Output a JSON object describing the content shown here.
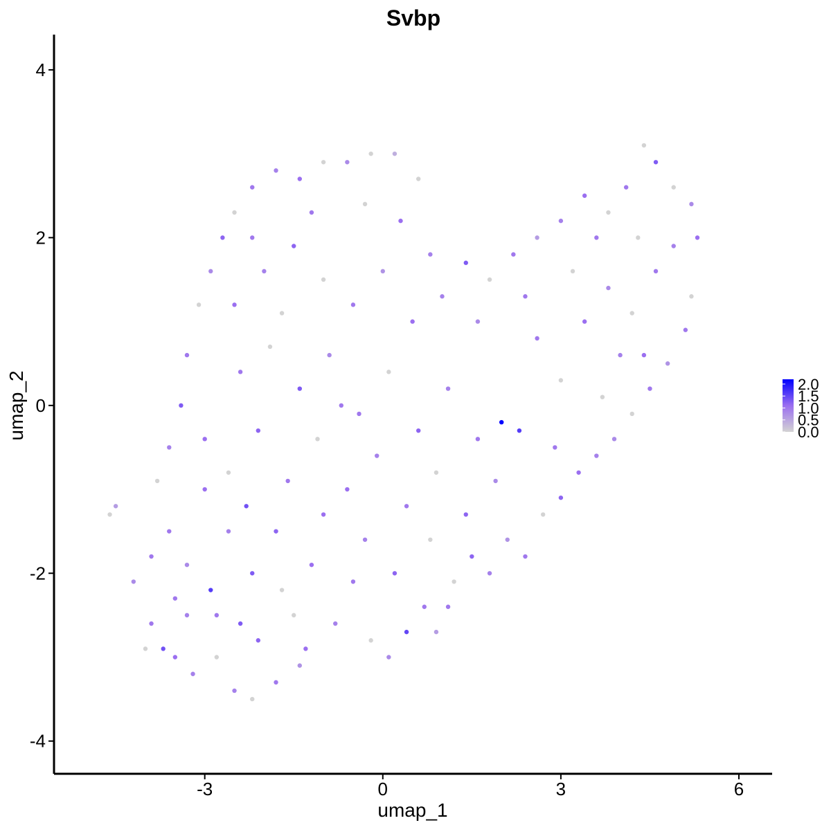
{
  "chart_data": {
    "type": "scatter",
    "title": "Svbp",
    "x_label": "umap_1",
    "y_label": "umap_2",
    "xlim": [
      -5.54,
      6.56
    ],
    "ylim": [
      -4.39,
      4.42
    ],
    "xticks": [
      -3,
      0,
      3,
      6
    ],
    "yticks": [
      -4,
      -2,
      0,
      2,
      4
    ],
    "colorbar": {
      "lim": [
        0,
        2.2
      ],
      "colors": [
        "#d3d3d3",
        "#9b6ff0",
        "#0000ff"
      ],
      "ticks": [
        {
          "value": 0,
          "label": "0.0"
        },
        {
          "value": 0.5,
          "label": "0.5"
        },
        {
          "value": 1,
          "label": "1.0"
        },
        {
          "value": 1.5,
          "label": "1.5"
        },
        {
          "value": 2,
          "label": "2.0"
        }
      ]
    },
    "x": [
      -4.6,
      -4.5,
      -4.2,
      -3.9,
      -3.7,
      -3.5,
      -3.2,
      -2.9,
      -2.8,
      -2.5,
      -2.2,
      -2.1,
      -1.8,
      -1.4,
      -3.6,
      -3.3,
      -3.0,
      -2.6,
      -2.2,
      -1.8,
      -1.5,
      -1.2,
      -0.8,
      -0.5,
      -0.2,
      0.1,
      0.4,
      0.7,
      0.9,
      1.2,
      1.5,
      1.8,
      2.1,
      2.4,
      2.7,
      3.0,
      3.3,
      3.6,
      3.9,
      4.2,
      4.5,
      4.8,
      5.1,
      5.2,
      5.3,
      5.2,
      4.9,
      4.6,
      4.4,
      4.1,
      3.8,
      3.4,
      3.0,
      2.6,
      2.2,
      1.8,
      1.4,
      1.0,
      0.6,
      0.2,
      -0.2,
      -0.6,
      -1.0,
      -1.4,
      -1.8,
      -2.2,
      -2.5,
      -2.7,
      -2.9,
      -3.1,
      -3.3,
      -3.4,
      -3.6,
      -3.8,
      -2.5,
      -2.0,
      -1.5,
      -1.0,
      -0.5,
      0.0,
      0.5,
      -2.4,
      -1.9,
      -1.4,
      -0.9,
      -0.4,
      0.1,
      0.6,
      1.1,
      1.6,
      2.0,
      2.3,
      2.6,
      3.0,
      3.4,
      3.8,
      4.2,
      4.6,
      4.0,
      3.2,
      2.4,
      1.6,
      -3.0,
      -2.6,
      -2.1,
      -1.6,
      -1.1,
      -0.6,
      -0.1,
      0.4,
      0.9,
      1.4,
      1.9,
      -2.8,
      -2.3,
      -1.7,
      -1.0,
      -0.3,
      0.2,
      0.8,
      1.1,
      -3.3,
      -3.9,
      -4.0,
      2.9,
      3.7,
      4.4,
      4.9,
      4.3,
      3.6,
      -1.2,
      -0.3,
      0.3,
      0.8,
      -2.2,
      -1.7,
      -0.7,
      -1.3,
      -2.4,
      -3.5
    ],
    "y": [
      -1.3,
      -1.2,
      -2.1,
      -2.6,
      -2.9,
      -3.0,
      -3.2,
      -2.2,
      -3.0,
      -3.4,
      -3.5,
      -2.8,
      -3.3,
      -3.1,
      -1.5,
      -1.9,
      -1.0,
      -1.5,
      -2.0,
      -1.5,
      -2.5,
      -1.9,
      -2.6,
      -2.1,
      -2.8,
      -3.0,
      -2.7,
      -2.4,
      -2.7,
      -2.1,
      -1.8,
      -2.0,
      -1.6,
      -1.8,
      -1.3,
      -1.1,
      -0.8,
      -0.6,
      -0.4,
      -0.1,
      0.2,
      0.5,
      0.9,
      1.3,
      2.0,
      2.4,
      2.6,
      2.9,
      3.1,
      2.6,
      2.3,
      2.5,
      2.2,
      2.0,
      1.8,
      1.5,
      1.7,
      1.3,
      2.7,
      3.0,
      3.0,
      2.9,
      2.9,
      2.7,
      2.8,
      2.6,
      2.3,
      2.0,
      1.6,
      1.2,
      0.6,
      0.0,
      -0.5,
      -0.9,
      1.2,
      1.6,
      1.9,
      1.5,
      1.2,
      1.6,
      1.0,
      0.4,
      0.7,
      0.2,
      0.6,
      -0.1,
      0.4,
      -0.3,
      0.2,
      -0.4,
      -0.2,
      -0.3,
      0.8,
      0.3,
      1.0,
      1.4,
      1.1,
      1.6,
      0.6,
      1.6,
      1.3,
      1.0,
      -0.4,
      -0.8,
      -0.3,
      -0.9,
      -0.4,
      -1.0,
      -0.6,
      -1.2,
      -0.8,
      -1.3,
      -0.9,
      -2.5,
      -1.2,
      -2.2,
      -1.3,
      -1.6,
      -2.0,
      -1.6,
      -2.4,
      -2.5,
      -1.8,
      -2.9,
      -0.5,
      0.1,
      0.6,
      1.9,
      2.0,
      2.0,
      2.3,
      2.4,
      2.2,
      1.8,
      2.0,
      1.1,
      0.0,
      -2.9,
      -2.6,
      -2.3
    ],
    "values": [
      0.0,
      0.6,
      0.8,
      1.0,
      1.4,
      1.1,
      0.9,
      1.6,
      0.0,
      0.9,
      0.0,
      1.2,
      1.0,
      0.7,
      1.0,
      0.8,
      1.1,
      0.9,
      1.3,
      1.2,
      0.0,
      1.1,
      0.9,
      1.0,
      0.0,
      0.8,
      1.5,
      1.0,
      0.6,
      0.0,
      1.2,
      0.9,
      0.7,
      1.0,
      0.0,
      1.2,
      1.1,
      0.9,
      0.8,
      0.0,
      1.0,
      0.7,
      1.0,
      0.0,
      1.1,
      0.8,
      0.0,
      1.3,
      0.0,
      1.0,
      0.0,
      1.1,
      0.9,
      0.6,
      1.0,
      0.0,
      1.3,
      0.9,
      0.0,
      0.4,
      0.0,
      0.8,
      0.0,
      1.1,
      0.9,
      1.0,
      0.0,
      1.2,
      0.8,
      0.0,
      1.0,
      1.3,
      0.9,
      0.0,
      1.1,
      0.9,
      1.2,
      0.0,
      1.0,
      0.7,
      1.1,
      1.0,
      0.0,
      1.3,
      0.8,
      1.0,
      0.0,
      1.2,
      0.9,
      1.0,
      2.2,
      1.6,
      1.0,
      0.0,
      1.1,
      0.8,
      0.0,
      1.0,
      0.9,
      0.0,
      1.0,
      0.8,
      1.1,
      0.0,
      1.2,
      1.0,
      0.0,
      1.1,
      0.9,
      1.0,
      0.0,
      1.2,
      0.8,
      1.0,
      1.4,
      0.0,
      1.1,
      0.9,
      1.2,
      0.0,
      1.0,
      0.9,
      1.0,
      0.0,
      1.0,
      0.0,
      1.1,
      0.9,
      0.0,
      1.0,
      1.0,
      0.0,
      1.1,
      0.9,
      1.0,
      0.0,
      1.0,
      1.1,
      1.3,
      1.0
    ]
  }
}
